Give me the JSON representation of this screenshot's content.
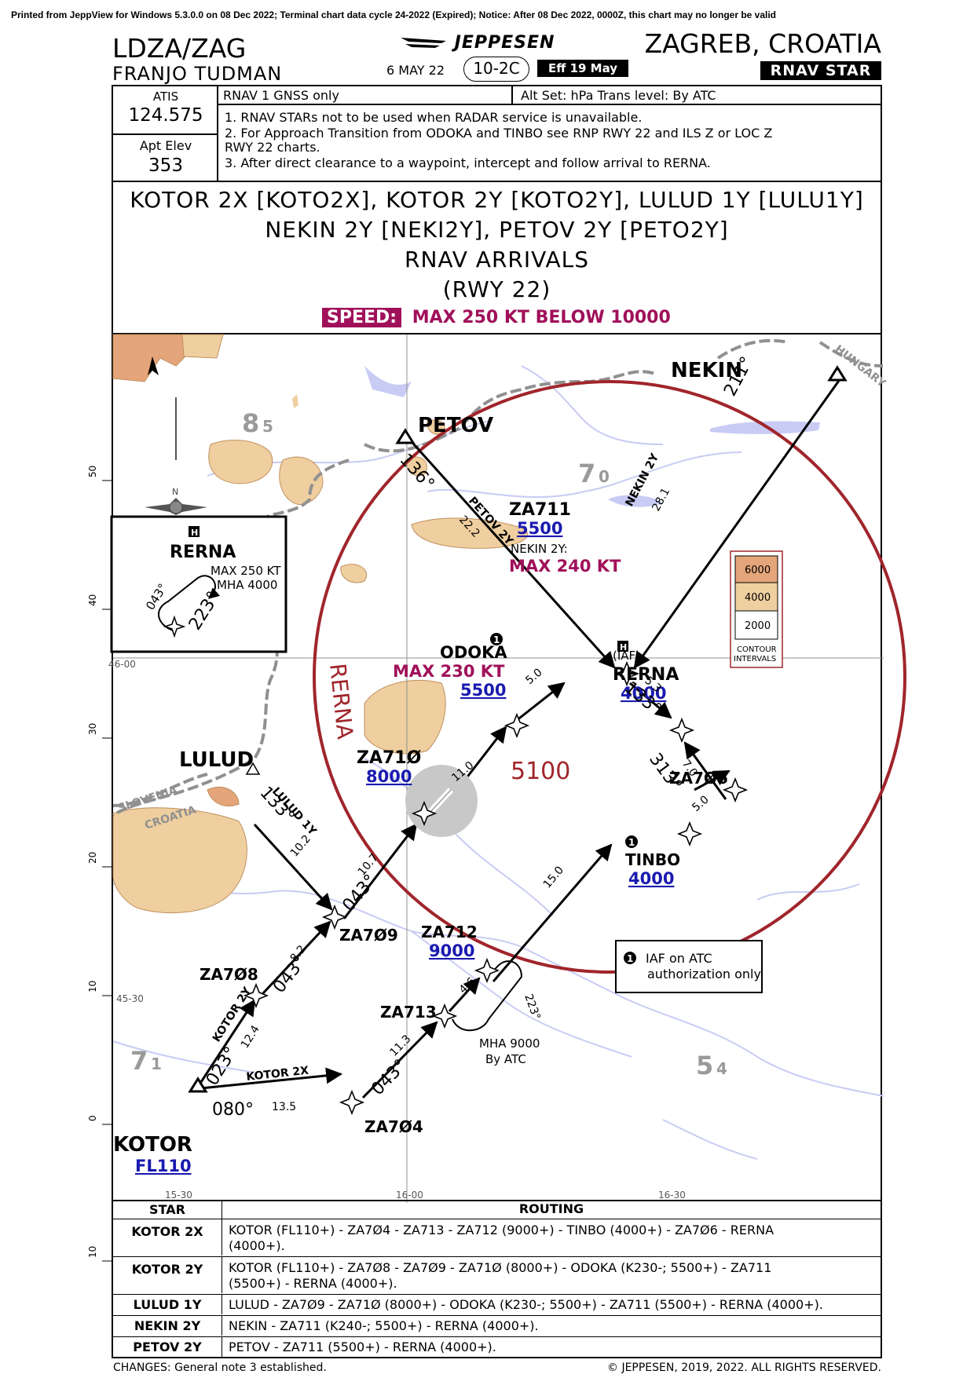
{
  "print_note": "Printed from JeppView for Windows 5.3.0.0 on 08 Dec 2022; Terminal chart data cycle 24-2022 (Expired); Notice: After 08 Dec 2022, 0000Z, this chart may no longer be valid",
  "header": {
    "airport_id": "LDZA/ZAG",
    "airport_name": "FRANJO TUDMAN",
    "brand": "JEPPESEN",
    "date": "6 MAY 22",
    "chart_number": "10-2C",
    "effective": "Eff 19 May",
    "city": "ZAGREB, CROATIA",
    "chart_type": "RNAV STAR"
  },
  "info": {
    "atis_label": "ATIS",
    "atis_freq": "124.575",
    "elev_label": "Apt Elev",
    "elev_value": "353",
    "nav_spec": "RNAV 1   GNSS only",
    "alt_set": "Alt Set: hPa   Trans level: By ATC",
    "note1": "1. RNAV STARs not to be used when RADAR service is unavailable.",
    "note2a": "2. For Approach Transition from ODOKA and TINBO see RNP RWY 22 and ILS Z or LOC Z",
    "note2b": "RWY 22 charts.",
    "note3": "3. After direct clearance to a waypoint, intercept and follow arrival to RERNA."
  },
  "title": {
    "line1": "KOTOR 2X [KOTO2X], KOTOR 2Y [KOTO2Y], LULUD 1Y [LULU1Y]",
    "line2": "NEKIN 2Y [NEKI2Y], PETOV 2Y [PETO2Y]",
    "line3": "RNAV ARRIVALS",
    "line4": "(RWY 22)",
    "speed_label": "SPEED:",
    "speed_text": "MAX 250 KT BELOW 10000"
  },
  "map": {
    "colors": {
      "terrain_light": "#efcf9f",
      "terrain_mid": "#e5a57a",
      "water": "#c8ccf4",
      "msa_ring": "#a0252b",
      "route": "#000000",
      "alt_blue": "#1a1ab0",
      "speed_mag": "#a0105a"
    },
    "grid_left": {
      "y50": "50",
      "y40": "40",
      "y30": "30",
      "y20": "20",
      "y10": "10",
      "y0": "0"
    },
    "grid_lat": {
      "l1": "46-00",
      "l2": "45-30"
    },
    "grid_lon": {
      "l1": "15-30",
      "l2": "15-30",
      "l3": "16-00",
      "l4": "16-30"
    },
    "terrain_figs": {
      "t85a": "8",
      "t85b": "5",
      "t70a": "7",
      "t70b": "0",
      "t71a": "7",
      "t71b": "1",
      "t54a": "5",
      "t54b": "4"
    },
    "msa": {
      "label": "RERNA",
      "alt": "5100"
    },
    "countries": {
      "hungary": "HUNGARY",
      "slovenia": "SLOVENIA",
      "croatia": "CROATIA"
    },
    "waypoints": {
      "nekin": "NEKIN",
      "petov": "PETOV",
      "za711": "ZA711",
      "za711_alt": "5500",
      "za711_note": "NEKIN 2Y:",
      "za711_speed": "MAX 240 KT",
      "odoka": "ODOKA",
      "odoka_speed": "MAX 230 KT",
      "odoka_alt": "5500",
      "rerna": "RERNA",
      "rerna_iaf": "(IAF)",
      "rerna_alt": "4000",
      "za710": "ZA71Ø",
      "za710_alt": "8000",
      "za706": "ZA7Ø6",
      "lulud": "LULUD",
      "tinbo": "TINBO",
      "tinbo_alt": "4000",
      "za709": "ZA7Ø9",
      "za712": "ZA712",
      "za712_alt": "9000",
      "za708": "ZA7Ø8",
      "za713": "ZA713",
      "za713_mha": "MHA 9000",
      "za713_atc": "By ATC",
      "za704": "ZA7Ø4",
      "kotor": "KOTOR",
      "kotor_alt": "FL110"
    },
    "legs": {
      "nekin_crs": "211°",
      "nekin_name": "NEKIN 2Y",
      "nekin_dist": "28.1",
      "petov_crs": "136°",
      "petov_name": "PETOV 2Y",
      "petov_dist": "22.2",
      "odoka_dist": "5.0",
      "rerna_dist": "5.3",
      "rerna_crs": "133°",
      "za706_dist": "7.0",
      "za706_crs": "313°",
      "tinbo_dist": "5.0",
      "za710_dist": "11.0",
      "za709_dist": "10.7",
      "za709_crs": "043°",
      "lulud_crs": "133°",
      "lulud_name": "LULUD 1Y",
      "lulud_dist": "10.2",
      "za708_dist": "8.2",
      "za708_crs": "043°",
      "za712_dist": "15.0",
      "za713_dist": "4.6",
      "hold_crs": "223°",
      "za704_dist": "11.3",
      "za704_crs": "043°",
      "kotor2y_name": "KOTOR 2Y",
      "kotor2y_dist": "12.4",
      "kotor2y_crs": "023°",
      "kotor2x_name": "KOTOR 2X",
      "kotor2x_dist": "13.5",
      "kotor2x_crs": "080°"
    },
    "inset": {
      "name": "RERNA",
      "speed": "MAX 250 KT",
      "mha": "MHA 4000",
      "crs1": "043°",
      "crs2": "223°"
    },
    "contour": {
      "c6000": "6000",
      "c4000": "4000",
      "c2000": "2000",
      "label1": "CONTOUR",
      "label2": "INTERVALS"
    },
    "iaf_note": {
      "line1": "IAF on ATC",
      "line2": "authorization only",
      "num": "1"
    }
  },
  "table": {
    "head_star": "STAR",
    "head_routing": "ROUTING",
    "rows": [
      {
        "star": "KOTOR 2X",
        "l1": "KOTOR (FL110+) - ZA7Ø4 - ZA713 - ZA712 (9000+) - TINBO (4000+) - ZA7Ø6 - RERNA",
        "l2": "(4000+)."
      },
      {
        "star": "KOTOR 2Y",
        "l1": "KOTOR (FL110+) - ZA7Ø8 - ZA7Ø9 - ZA71Ø (8000+) - ODOKA (K230-; 5500+) - ZA711",
        "l2": "(5500+) - RERNA (4000+)."
      },
      {
        "star": "LULUD 1Y",
        "l1": "LULUD - ZA7Ø9 - ZA71Ø (8000+) - ODOKA (K230-; 5500+) - ZA711 (5500+) - RERNA (4000+).",
        "l2": ""
      },
      {
        "star": "NEKIN 2Y",
        "l1": "NEKIN - ZA711 (K240-; 5500+) - RERNA (4000+).",
        "l2": ""
      },
      {
        "star": "PETOV 2Y",
        "l1": "PETOV - ZA711 (5500+) - RERNA (4000+).",
        "l2": ""
      }
    ],
    "left_tick": "10"
  },
  "footer": {
    "changes": "CHANGES: General note 3 established.",
    "copyright": "© JEPPESEN, 2019, 2022. ALL RIGHTS RESERVED."
  }
}
